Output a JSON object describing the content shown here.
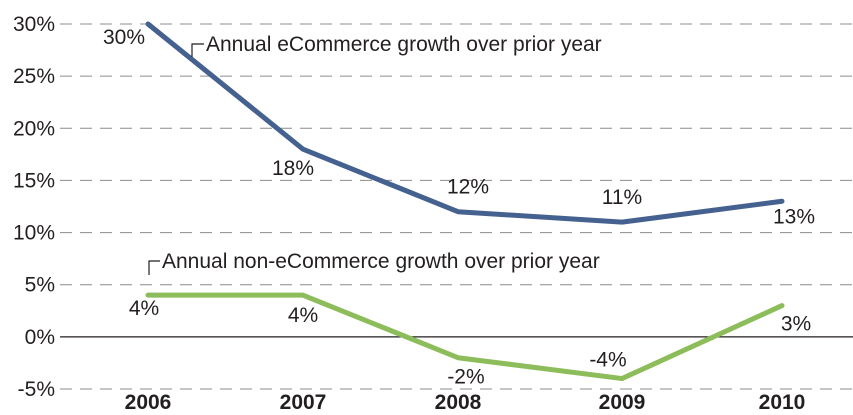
{
  "chart_data": {
    "type": "line",
    "categories": [
      "2006",
      "2007",
      "2008",
      "2009",
      "2010"
    ],
    "ylim": [
      -5,
      30
    ],
    "yticks": [
      30,
      25,
      20,
      15,
      10,
      5,
      0,
      -5
    ],
    "ytick_labels": [
      "30%",
      "25%",
      "20%",
      "15%",
      "10%",
      "5%",
      "0%",
      "-5%"
    ],
    "grid": true,
    "series": [
      {
        "name": "Annual eCommerce growth over prior year",
        "color": "#44618f",
        "values": [
          30,
          18,
          12,
          11,
          13
        ],
        "labels": [
          "30%",
          "18%",
          "12%",
          "11%",
          "13%"
        ]
      },
      {
        "name": "Annual non-eCommerce growth over prior year",
        "color": "#8cbd5a",
        "values": [
          4,
          4,
          -2,
          -4,
          3
        ],
        "labels": [
          "4%",
          "4%",
          "-2%",
          "-4%",
          "3%"
        ]
      }
    ]
  }
}
